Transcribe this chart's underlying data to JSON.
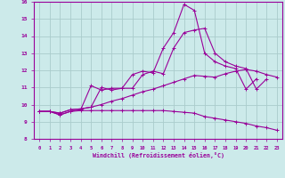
{
  "xlabel": "Windchill (Refroidissement éolien,°C)",
  "background_color": "#cceaea",
  "grid_color": "#aacccc",
  "line_color": "#990099",
  "xlim": [
    -0.5,
    23.5
  ],
  "ylim": [
    8,
    16
  ],
  "line1_x": [
    0,
    1,
    2,
    3,
    4,
    5,
    6,
    7,
    8,
    9,
    10,
    11,
    12,
    13,
    14,
    15,
    16,
    17,
    18,
    19,
    20,
    21,
    22,
    23
  ],
  "line1_y": [
    9.6,
    9.6,
    9.4,
    9.6,
    9.65,
    9.65,
    9.65,
    9.65,
    9.65,
    9.65,
    9.65,
    9.65,
    9.65,
    9.6,
    9.55,
    9.5,
    9.3,
    9.2,
    9.1,
    9.0,
    8.9,
    8.75,
    8.65,
    8.5
  ],
  "line2_x": [
    0,
    1,
    2,
    3,
    4,
    5,
    6,
    7,
    8,
    9,
    10,
    11,
    12,
    13,
    14,
    15,
    16,
    17,
    18,
    19,
    20,
    21,
    22,
    23
  ],
  "line2_y": [
    9.6,
    9.6,
    9.5,
    9.7,
    9.75,
    9.85,
    10.0,
    10.2,
    10.35,
    10.55,
    10.75,
    10.9,
    11.1,
    11.3,
    11.5,
    11.7,
    11.65,
    11.6,
    11.8,
    11.95,
    12.05,
    11.95,
    11.75,
    11.6
  ],
  "line3_x": [
    0,
    1,
    2,
    3,
    4,
    5,
    6,
    7,
    8,
    9,
    10,
    11,
    12,
    13,
    14,
    15,
    16,
    17,
    18,
    19,
    20,
    21,
    22
  ],
  "line3_y": [
    9.6,
    9.6,
    9.5,
    9.7,
    9.75,
    9.85,
    11.0,
    10.85,
    10.95,
    10.95,
    11.75,
    11.95,
    11.8,
    13.3,
    14.2,
    14.35,
    14.45,
    13.0,
    12.5,
    12.25,
    12.1,
    10.9,
    11.5
  ],
  "line4_x": [
    0,
    1,
    2,
    3,
    4,
    5,
    6,
    7,
    8,
    9,
    10,
    11,
    12,
    13,
    14,
    15,
    16,
    17,
    18,
    19,
    20,
    21
  ],
  "line4_y": [
    9.6,
    9.6,
    9.4,
    9.6,
    9.7,
    11.1,
    10.85,
    10.95,
    10.95,
    11.75,
    11.95,
    11.85,
    13.3,
    14.2,
    15.85,
    15.5,
    13.0,
    12.5,
    12.25,
    12.1,
    10.9,
    11.5
  ]
}
